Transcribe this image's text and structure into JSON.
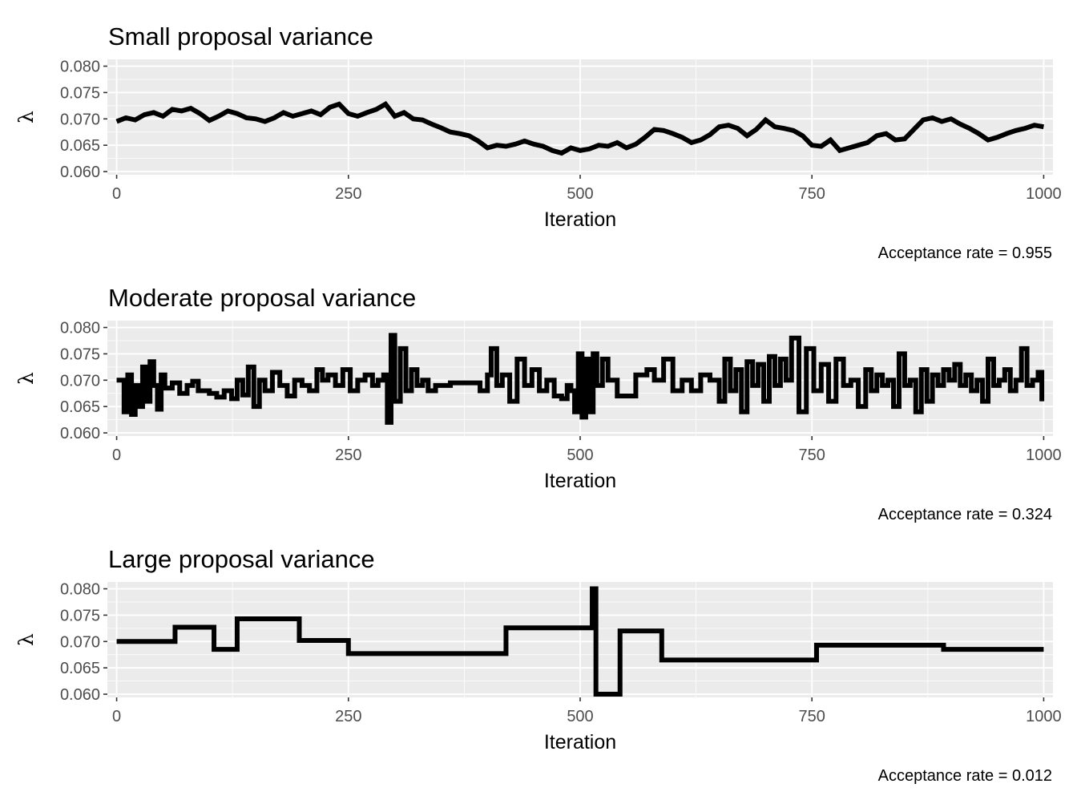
{
  "chart_data": [
    {
      "type": "line",
      "title": "Small proposal variance",
      "xlabel": "Iteration",
      "ylabel": "λ",
      "caption": "Acceptance rate =  0.955",
      "xlim": [
        -10,
        1010
      ],
      "ylim": [
        0.0594,
        0.0813
      ],
      "xticks": [
        0,
        250,
        500,
        750,
        1000
      ],
      "xtick_labels": [
        "0",
        "250",
        "500",
        "750",
        "1000"
      ],
      "yticks": [
        0.06,
        0.065,
        0.07,
        0.075,
        0.08
      ],
      "ytick_labels": [
        "0.060",
        "0.065",
        "0.070",
        "0.075",
        "0.080"
      ],
      "grid": true,
      "legend": "none",
      "series": [
        {
          "line_color": "#000000",
          "step": false,
          "x": [
            0,
            10,
            20,
            30,
            40,
            50,
            60,
            70,
            80,
            90,
            100,
            110,
            120,
            130,
            140,
            150,
            160,
            170,
            180,
            190,
            200,
            210,
            220,
            230,
            240,
            250,
            260,
            270,
            280,
            290,
            300,
            310,
            320,
            330,
            340,
            350,
            360,
            370,
            380,
            390,
            400,
            410,
            420,
            430,
            440,
            450,
            460,
            470,
            480,
            490,
            500,
            510,
            520,
            530,
            540,
            550,
            560,
            570,
            580,
            590,
            600,
            610,
            620,
            630,
            640,
            650,
            660,
            670,
            680,
            690,
            700,
            710,
            720,
            730,
            740,
            750,
            760,
            770,
            780,
            790,
            800,
            810,
            820,
            830,
            840,
            850,
            860,
            870,
            880,
            890,
            900,
            910,
            920,
            930,
            940,
            950,
            960,
            970,
            980,
            990,
            1000
          ],
          "y": [
            0.0695,
            0.0702,
            0.0698,
            0.0708,
            0.0712,
            0.0705,
            0.0718,
            0.0715,
            0.072,
            0.071,
            0.0697,
            0.0705,
            0.0715,
            0.071,
            0.0702,
            0.07,
            0.0695,
            0.0702,
            0.0712,
            0.0705,
            0.071,
            0.0715,
            0.0708,
            0.0722,
            0.0728,
            0.071,
            0.0705,
            0.0712,
            0.0718,
            0.0728,
            0.0705,
            0.0712,
            0.07,
            0.0698,
            0.069,
            0.0683,
            0.0675,
            0.0672,
            0.0668,
            0.0658,
            0.0645,
            0.065,
            0.0648,
            0.0652,
            0.0658,
            0.0652,
            0.0648,
            0.064,
            0.0635,
            0.0645,
            0.064,
            0.0643,
            0.065,
            0.0648,
            0.0655,
            0.0645,
            0.0652,
            0.0665,
            0.068,
            0.0678,
            0.0672,
            0.0665,
            0.0655,
            0.066,
            0.067,
            0.0685,
            0.0688,
            0.0682,
            0.0668,
            0.068,
            0.0698,
            0.0685,
            0.0682,
            0.0678,
            0.0668,
            0.065,
            0.0648,
            0.066,
            0.064,
            0.0645,
            0.065,
            0.0655,
            0.0668,
            0.0672,
            0.066,
            0.0662,
            0.068,
            0.0698,
            0.0702,
            0.0695,
            0.07,
            0.069,
            0.0682,
            0.0672,
            0.066,
            0.0665,
            0.0672,
            0.0678,
            0.0682,
            0.0688,
            0.0685
          ]
        }
      ]
    },
    {
      "type": "line",
      "title": "Moderate proposal variance",
      "xlabel": "Iteration",
      "ylabel": "λ",
      "caption": "Acceptance rate =  0.324",
      "xlim": [
        -10,
        1010
      ],
      "ylim": [
        0.0594,
        0.0813
      ],
      "xticks": [
        0,
        250,
        500,
        750,
        1000
      ],
      "xtick_labels": [
        "0",
        "250",
        "500",
        "750",
        "1000"
      ],
      "yticks": [
        0.06,
        0.065,
        0.07,
        0.075,
        0.08
      ],
      "ytick_labels": [
        "0.060",
        "0.065",
        "0.070",
        "0.075",
        "0.080"
      ],
      "grid": true,
      "legend": "none",
      "series": [
        {
          "line_color": "#000000",
          "step": true,
          "x": [
            0,
            8,
            12,
            16,
            20,
            24,
            28,
            32,
            36,
            40,
            44,
            48,
            52,
            60,
            68,
            76,
            82,
            88,
            100,
            108,
            116,
            124,
            130,
            136,
            142,
            148,
            154,
            160,
            168,
            176,
            184,
            192,
            200,
            208,
            216,
            222,
            228,
            236,
            244,
            252,
            260,
            268,
            276,
            282,
            288,
            292,
            296,
            300,
            306,
            312,
            318,
            324,
            330,
            336,
            344,
            360,
            380,
            392,
            400,
            404,
            410,
            416,
            424,
            432,
            440,
            448,
            456,
            464,
            472,
            480,
            486,
            490,
            494,
            498,
            502,
            506,
            510,
            514,
            518,
            524,
            530,
            540,
            560,
            572,
            580,
            590,
            600,
            610,
            620,
            630,
            640,
            650,
            656,
            662,
            668,
            674,
            680,
            686,
            692,
            698,
            704,
            710,
            716,
            722,
            728,
            736,
            744,
            752,
            760,
            768,
            776,
            784,
            792,
            800,
            808,
            814,
            820,
            826,
            832,
            838,
            844,
            850,
            856,
            862,
            868,
            874,
            880,
            886,
            892,
            898,
            904,
            910,
            916,
            922,
            928,
            934,
            940,
            946,
            952,
            958,
            964,
            970,
            976,
            982,
            988,
            994,
            998
          ],
          "y": [
            0.07,
            0.064,
            0.071,
            0.0635,
            0.069,
            0.065,
            0.0725,
            0.066,
            0.0735,
            0.069,
            0.0645,
            0.071,
            0.0685,
            0.0695,
            0.0675,
            0.069,
            0.0698,
            0.068,
            0.0675,
            0.0668,
            0.068,
            0.0665,
            0.07,
            0.0672,
            0.0725,
            0.065,
            0.07,
            0.068,
            0.0715,
            0.069,
            0.067,
            0.07,
            0.069,
            0.068,
            0.072,
            0.07,
            0.071,
            0.069,
            0.072,
            0.068,
            0.07,
            0.071,
            0.069,
            0.07,
            0.071,
            0.062,
            0.0785,
            0.066,
            0.076,
            0.068,
            0.072,
            0.069,
            0.07,
            0.068,
            0.069,
            0.0695,
            0.0695,
            0.068,
            0.071,
            0.076,
            0.069,
            0.071,
            0.066,
            0.074,
            0.069,
            0.072,
            0.068,
            0.07,
            0.067,
            0.0665,
            0.069,
            0.068,
            0.064,
            0.075,
            0.063,
            0.074,
            0.064,
            0.075,
            0.069,
            0.074,
            0.07,
            0.067,
            0.071,
            0.072,
            0.07,
            0.074,
            0.068,
            0.07,
            0.068,
            0.071,
            0.07,
            0.066,
            0.074,
            0.068,
            0.072,
            0.064,
            0.0735,
            0.069,
            0.073,
            0.066,
            0.0745,
            0.069,
            0.074,
            0.07,
            0.078,
            0.064,
            0.076,
            0.068,
            0.073,
            0.066,
            0.074,
            0.069,
            0.07,
            0.065,
            0.072,
            0.068,
            0.071,
            0.069,
            0.07,
            0.065,
            0.075,
            0.069,
            0.07,
            0.064,
            0.072,
            0.066,
            0.071,
            0.069,
            0.072,
            0.07,
            0.073,
            0.069,
            0.071,
            0.068,
            0.07,
            0.066,
            0.074,
            0.069,
            0.07,
            0.072,
            0.068,
            0.07,
            0.076,
            0.069,
            0.07,
            0.0715,
            0.066
          ]
        }
      ]
    },
    {
      "type": "line",
      "title": "Large proposal variance",
      "xlabel": "Iteration",
      "ylabel": "λ",
      "caption": "Acceptance rate =  0.012",
      "xlim": [
        -10,
        1010
      ],
      "ylim": [
        0.0594,
        0.0813
      ],
      "xticks": [
        0,
        250,
        500,
        750,
        1000
      ],
      "xtick_labels": [
        "0",
        "250",
        "500",
        "750",
        "1000"
      ],
      "yticks": [
        0.06,
        0.065,
        0.07,
        0.075,
        0.08
      ],
      "ytick_labels": [
        "0.060",
        "0.065",
        "0.070",
        "0.075",
        "0.080"
      ],
      "grid": true,
      "legend": "none",
      "series": [
        {
          "line_color": "#000000",
          "step": true,
          "x": [
            0,
            63,
            105,
            130,
            197,
            250,
            420,
            513,
            517,
            543,
            588,
            755,
            892,
            1000
          ],
          "y": [
            0.07,
            0.0727,
            0.0685,
            0.0743,
            0.0702,
            0.0677,
            0.0726,
            0.08,
            0.06,
            0.072,
            0.0665,
            0.0693,
            0.0685,
            0.0685
          ]
        }
      ]
    }
  ]
}
